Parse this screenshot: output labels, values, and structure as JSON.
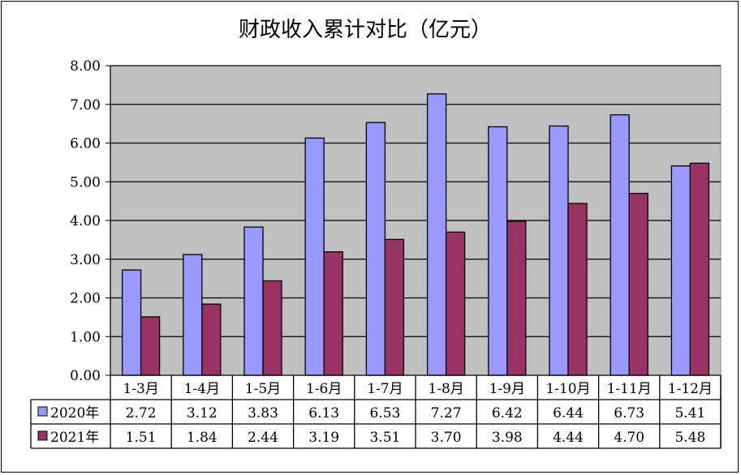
{
  "chart_data": {
    "type": "bar",
    "title": "财政收入累计对比（亿元）",
    "categories": [
      "1-3月",
      "1-4月",
      "1-5月",
      "1-6月",
      "1-7月",
      "1-8月",
      "1-9月",
      "1-10月",
      "1-11月",
      "1-12月"
    ],
    "series": [
      {
        "name": "2020年",
        "color": "#9999ff",
        "values": [
          2.72,
          3.12,
          3.83,
          6.13,
          6.53,
          7.27,
          6.42,
          6.44,
          6.73,
          5.41
        ],
        "labels": [
          "2.72",
          "3.12",
          "3.83",
          "6.13",
          "6.53",
          "7.27",
          "6.42",
          "6.44",
          "6.73",
          "5.41"
        ]
      },
      {
        "name": "2021年",
        "color": "#993366",
        "values": [
          1.51,
          1.84,
          2.44,
          3.19,
          3.51,
          3.7,
          3.98,
          4.44,
          4.7,
          5.48
        ],
        "labels": [
          "1.51",
          "1.84",
          "2.44",
          "3.19",
          "3.51",
          "3.70",
          "3.98",
          "4.44",
          "4.70",
          "5.48"
        ]
      }
    ],
    "ylim": [
      0,
      8
    ],
    "yticks": [
      "0.00",
      "1.00",
      "2.00",
      "3.00",
      "4.00",
      "5.00",
      "6.00",
      "7.00",
      "8.00"
    ],
    "grid": true,
    "plot_background": "#c0c0c0",
    "data_table": true
  }
}
